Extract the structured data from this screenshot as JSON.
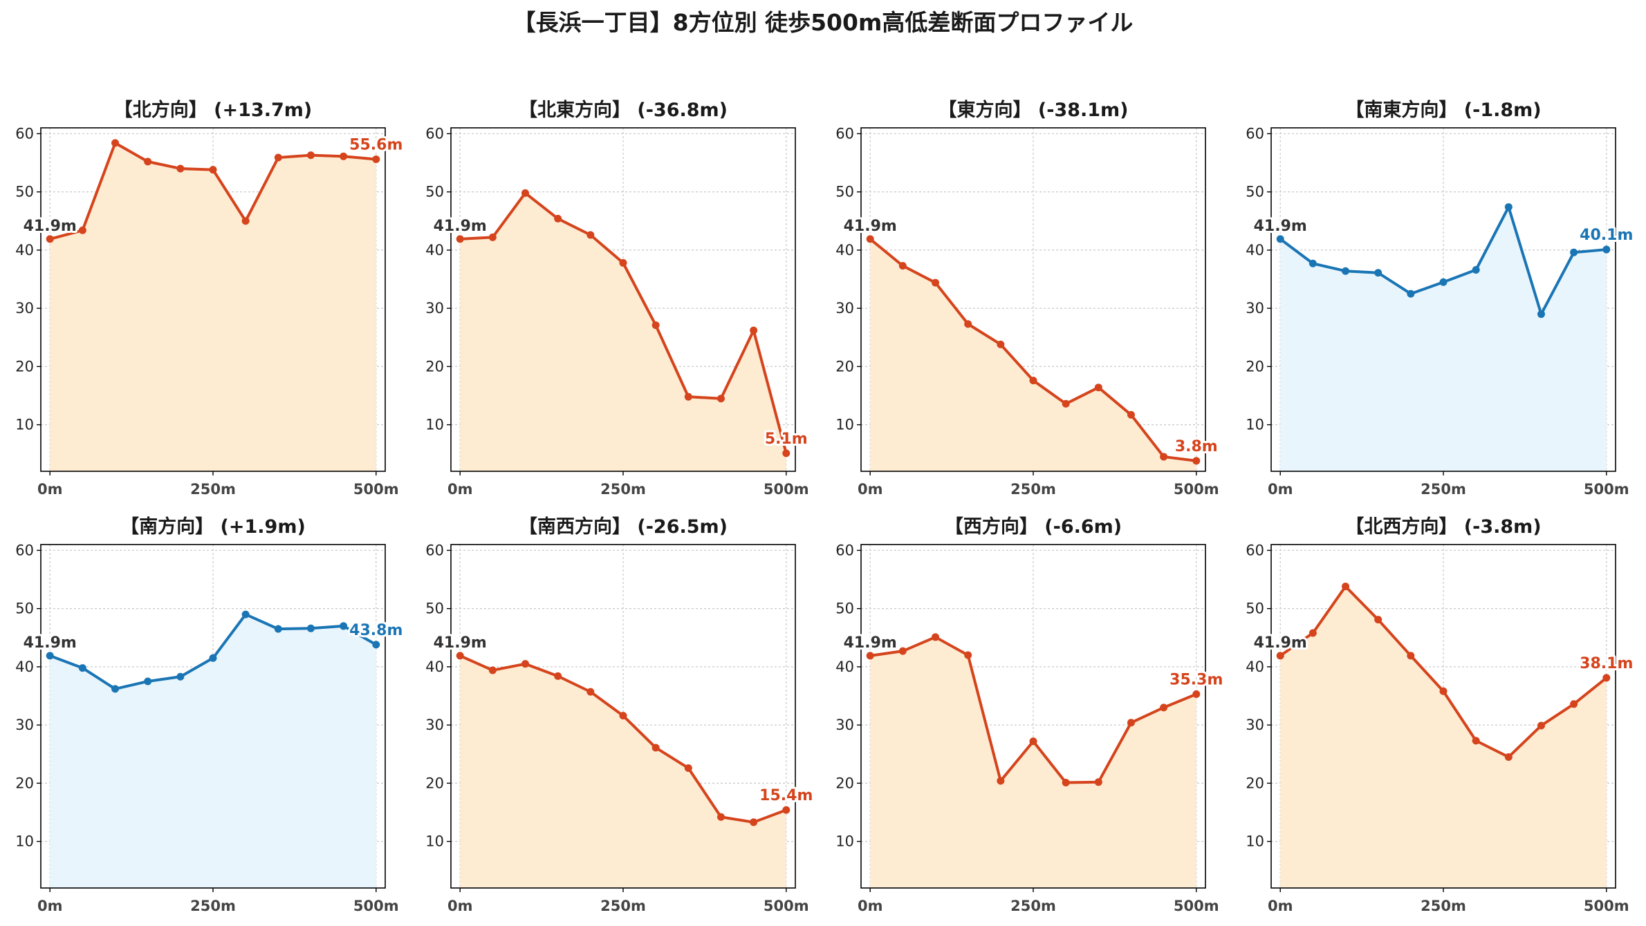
{
  "title": "【長浜一丁目】8方位別 徒歩500m高低差断面プロファイル",
  "colors": {
    "descent": "#d5441c",
    "descent_fill": "#fdebd2",
    "ascent": "#1a75b5",
    "ascent_fill": "#e8f5fc"
  },
  "chart_data": [
    {
      "type": "area",
      "title": "【北方向】 (+13.7m)",
      "color": "descent",
      "x": [
        0,
        50,
        100,
        150,
        200,
        250,
        300,
        350,
        400,
        450,
        500
      ],
      "y": [
        41.9,
        43.4,
        58.4,
        55.2,
        54.0,
        53.8,
        45.0,
        55.9,
        56.3,
        56.1,
        55.6
      ],
      "start_label": "41.9m",
      "end_label": "55.6m",
      "ylim": [
        2,
        61
      ],
      "yticks": [
        10,
        20,
        30,
        40,
        50,
        60
      ],
      "xticks": [
        "0m",
        "250m",
        "500m"
      ]
    },
    {
      "type": "area",
      "title": "【北東方向】 (-36.8m)",
      "color": "descent",
      "x": [
        0,
        50,
        100,
        150,
        200,
        250,
        300,
        350,
        400,
        450,
        500
      ],
      "y": [
        41.9,
        42.2,
        49.8,
        45.4,
        42.6,
        37.8,
        27.1,
        14.8,
        14.5,
        26.2,
        5.1
      ],
      "start_label": "41.9m",
      "end_label": "5.1m",
      "ylim": [
        2,
        61
      ],
      "yticks": [
        10,
        20,
        30,
        40,
        50,
        60
      ],
      "xticks": [
        "0m",
        "250m",
        "500m"
      ]
    },
    {
      "type": "area",
      "title": "【東方向】 (-38.1m)",
      "color": "descent",
      "x": [
        0,
        50,
        100,
        150,
        200,
        250,
        300,
        350,
        400,
        450,
        500
      ],
      "y": [
        41.9,
        37.3,
        34.4,
        27.3,
        23.8,
        17.6,
        13.6,
        16.4,
        11.7,
        4.5,
        3.8
      ],
      "start_label": "41.9m",
      "end_label": "3.8m",
      "ylim": [
        2,
        61
      ],
      "yticks": [
        10,
        20,
        30,
        40,
        50,
        60
      ],
      "xticks": [
        "0m",
        "250m",
        "500m"
      ]
    },
    {
      "type": "area",
      "title": "【南東方向】 (-1.8m)",
      "color": "ascent",
      "x": [
        0,
        50,
        100,
        150,
        200,
        250,
        300,
        350,
        400,
        450,
        500
      ],
      "y": [
        41.9,
        37.7,
        36.4,
        36.1,
        32.5,
        34.5,
        36.6,
        47.4,
        29.0,
        39.6,
        40.1
      ],
      "start_label": "41.9m",
      "end_label": "40.1m",
      "ylim": [
        2,
        61
      ],
      "yticks": [
        10,
        20,
        30,
        40,
        50,
        60
      ],
      "xticks": [
        "0m",
        "250m",
        "500m"
      ]
    },
    {
      "type": "area",
      "title": "【南方向】 (+1.9m)",
      "color": "ascent",
      "x": [
        0,
        50,
        100,
        150,
        200,
        250,
        300,
        350,
        400,
        450,
        500
      ],
      "y": [
        41.9,
        39.8,
        36.2,
        37.5,
        38.3,
        41.5,
        49.0,
        46.5,
        46.6,
        47.0,
        43.8
      ],
      "start_label": "41.9m",
      "end_label": "43.8m",
      "ylim": [
        2,
        61
      ],
      "yticks": [
        10,
        20,
        30,
        40,
        50,
        60
      ],
      "xticks": [
        "0m",
        "250m",
        "500m"
      ]
    },
    {
      "type": "area",
      "title": "【南西方向】 (-26.5m)",
      "color": "descent",
      "x": [
        0,
        50,
        100,
        150,
        200,
        250,
        300,
        350,
        400,
        450,
        500
      ],
      "y": [
        41.9,
        39.4,
        40.5,
        38.4,
        35.7,
        31.6,
        26.1,
        22.6,
        14.2,
        13.3,
        15.4
      ],
      "start_label": "41.9m",
      "end_label": "15.4m",
      "ylim": [
        2,
        61
      ],
      "yticks": [
        10,
        20,
        30,
        40,
        50,
        60
      ],
      "xticks": [
        "0m",
        "250m",
        "500m"
      ]
    },
    {
      "type": "area",
      "title": "【西方向】 (-6.6m)",
      "color": "descent",
      "x": [
        0,
        50,
        100,
        150,
        200,
        250,
        300,
        350,
        400,
        450,
        500
      ],
      "y": [
        41.9,
        42.7,
        45.1,
        42.0,
        20.4,
        27.2,
        20.1,
        20.2,
        30.4,
        33.0,
        35.3
      ],
      "start_label": "41.9m",
      "end_label": "35.3m",
      "ylim": [
        2,
        61
      ],
      "yticks": [
        10,
        20,
        30,
        40,
        50,
        60
      ],
      "xticks": [
        "0m",
        "250m",
        "500m"
      ]
    },
    {
      "type": "area",
      "title": "【北西方向】 (-3.8m)",
      "color": "descent",
      "x": [
        0,
        50,
        100,
        150,
        200,
        250,
        300,
        350,
        400,
        450,
        500
      ],
      "y": [
        41.9,
        45.8,
        53.8,
        48.1,
        41.9,
        35.8,
        27.3,
        24.5,
        29.9,
        33.6,
        38.1
      ],
      "start_label": "41.9m",
      "end_label": "38.1m",
      "ylim": [
        2,
        61
      ],
      "yticks": [
        10,
        20,
        30,
        40,
        50,
        60
      ],
      "xticks": [
        "0m",
        "250m",
        "500m"
      ]
    }
  ]
}
